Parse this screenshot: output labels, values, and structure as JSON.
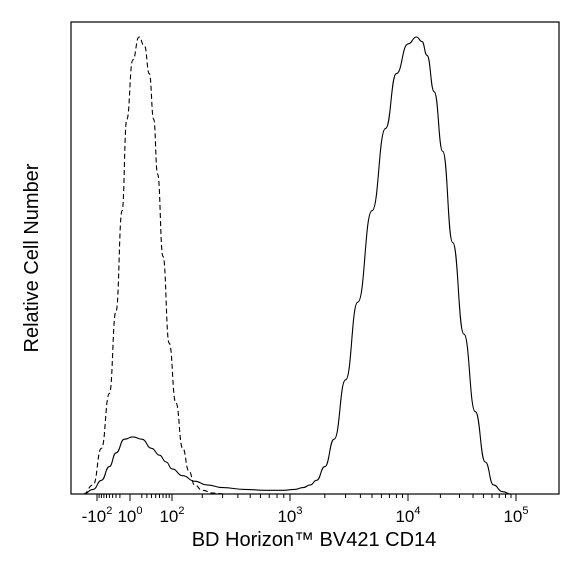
{
  "chart_data": {
    "type": "area",
    "title": "",
    "xlabel": "BD Horizon™ BV421 CD14",
    "ylabel": "Relative Cell Number",
    "x_scale": "biexponential",
    "xlim": [
      -300,
      150000
    ],
    "ylim": [
      0,
      1.0
    ],
    "grid": false,
    "legend": "none",
    "x_ticks": [
      {
        "value": -100,
        "base": "-10",
        "exp": "2"
      },
      {
        "value": 1,
        "base": "10",
        "exp": "0"
      },
      {
        "value": 100,
        "base": "10",
        "exp": "2"
      },
      {
        "value": 1000,
        "base": "10",
        "exp": "3"
      },
      {
        "value": 10000,
        "base": "10",
        "exp": "4"
      },
      {
        "value": 100000,
        "base": "10",
        "exp": "5"
      }
    ],
    "series": [
      {
        "style": "dashed",
        "color": "#000000",
        "x": [
          -180,
          -120,
          -80,
          -50,
          -30,
          -15,
          -5,
          5,
          15,
          25,
          35,
          45,
          55,
          70,
          90,
          110,
          130,
          150,
          170,
          200,
          250,
          320
        ],
        "y": [
          0,
          0.02,
          0.1,
          0.22,
          0.4,
          0.62,
          0.82,
          0.95,
          1.0,
          0.98,
          0.92,
          0.82,
          0.7,
          0.52,
          0.33,
          0.2,
          0.1,
          0.05,
          0.02,
          0.008,
          0.002,
          0
        ]
      },
      {
        "style": "solid",
        "color": "#000000",
        "x": [
          -180,
          -120,
          -80,
          -50,
          -30,
          -10,
          5,
          20,
          40,
          60,
          80,
          100,
          130,
          170,
          220,
          300,
          450,
          650,
          900,
          1100,
          1300,
          1500,
          1700,
          2000,
          2400,
          3000,
          3800,
          5000,
          6500,
          8000,
          10000,
          12000,
          13500,
          15000,
          17500,
          21000,
          26000,
          33000,
          42000,
          52000,
          62000,
          75000,
          90000
        ],
        "y": [
          0,
          0.01,
          0.03,
          0.06,
          0.09,
          0.12,
          0.125,
          0.12,
          0.1,
          0.085,
          0.07,
          0.055,
          0.04,
          0.028,
          0.02,
          0.014,
          0.01,
          0.008,
          0.008,
          0.01,
          0.014,
          0.02,
          0.03,
          0.06,
          0.12,
          0.25,
          0.42,
          0.62,
          0.8,
          0.92,
          0.985,
          1.0,
          0.99,
          0.96,
          0.88,
          0.75,
          0.55,
          0.35,
          0.18,
          0.07,
          0.02,
          0.005,
          0
        ]
      }
    ]
  }
}
